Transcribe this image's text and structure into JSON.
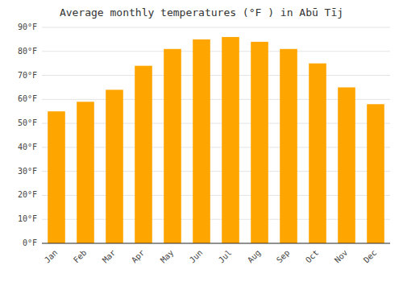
{
  "chart_data": {
    "type": "bar",
    "title": "Average monthly temperatures (°F ) in Abū Tīj",
    "categories": [
      "Jan",
      "Feb",
      "Mar",
      "Apr",
      "May",
      "Jun",
      "Jul",
      "Aug",
      "Sep",
      "Oct",
      "Nov",
      "Dec"
    ],
    "values": [
      55,
      59,
      64,
      74,
      81,
      85,
      86,
      84,
      81,
      75,
      65,
      58
    ],
    "color": "#FFA500",
    "ylim": [
      0,
      90
    ],
    "yticks": [
      {
        "value": 0,
        "label": "0°F"
      },
      {
        "value": 10,
        "label": "10°F"
      },
      {
        "value": 20,
        "label": "20°F"
      },
      {
        "value": 30,
        "label": "30°F"
      },
      {
        "value": 40,
        "label": "40°F"
      },
      {
        "value": 50,
        "label": "50°F"
      },
      {
        "value": 60,
        "label": "60°F"
      },
      {
        "value": 70,
        "label": "70°F"
      },
      {
        "value": 80,
        "label": "80°F"
      },
      {
        "value": 90,
        "label": "90°F"
      }
    ],
    "grid": true
  }
}
